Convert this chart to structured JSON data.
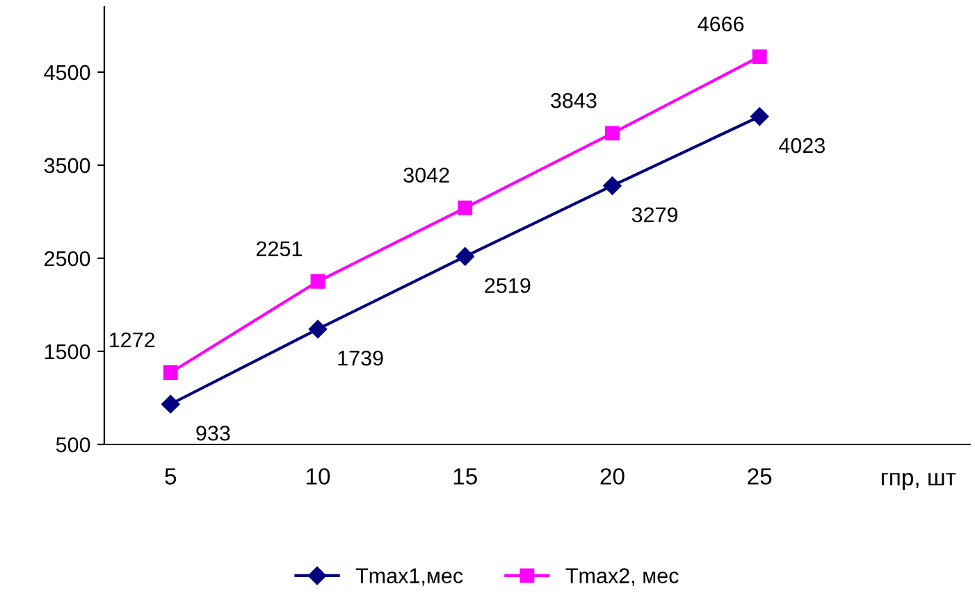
{
  "chart_data": {
    "type": "line",
    "xlabel": "гпр, шт",
    "categories": [
      "5",
      "10",
      "15",
      "20",
      "25"
    ],
    "series": [
      {
        "name": "Tmax1,мес",
        "color": "#000080",
        "marker": "diamond",
        "values": [
          933,
          1739,
          2519,
          3279,
          4023
        ]
      },
      {
        "name": "Tmax2, мес",
        "color": "#ff00ff",
        "marker": "square",
        "values": [
          1272,
          2251,
          3042,
          3843,
          4666
        ]
      }
    ],
    "ylim": [
      500,
      5200
    ],
    "yticks": [
      500,
      1500,
      2500,
      3500,
      4500
    ],
    "grid": false,
    "legend": "bottom",
    "data_labels": true,
    "line_style": "solid"
  }
}
